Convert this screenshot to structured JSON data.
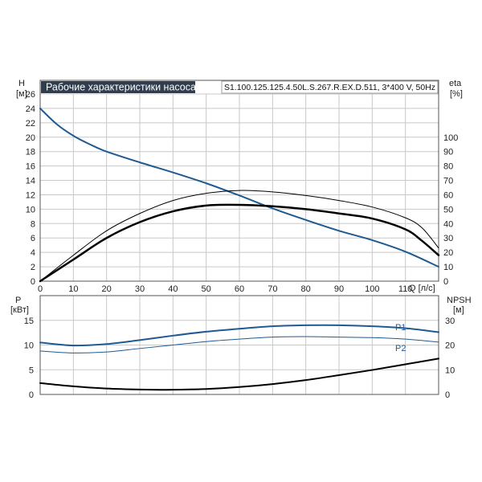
{
  "header": {
    "title": "Рабочие характеристики насоса",
    "model": "S1.100.125.125.4.50L.S.267.R.EX.D.511, 3*400 V, 50Hz",
    "title_bg": "#2f3d4f"
  },
  "colors": {
    "blue_curve": "#1f5a93",
    "black_curve": "#000000",
    "grid": "#c8c8c8"
  },
  "chart_data": [
    {
      "type": "line",
      "panel": "top",
      "xlabel": "Q [л/с]",
      "ylabel_left": "H",
      "ylabel_left_unit": "[м]",
      "ylabel_right": "eta",
      "ylabel_right_unit": "[%]",
      "xlim": [
        0,
        120
      ],
      "ylim_left": [
        0,
        26
      ],
      "ylim_right": [
        0,
        130
      ],
      "x_ticks": [
        0,
        10,
        20,
        30,
        40,
        50,
        60,
        70,
        80,
        90,
        100,
        110
      ],
      "x_tick_labels": [
        "0",
        "10",
        "20",
        "30",
        "40",
        "50",
        "60",
        "70",
        "80",
        "90",
        "100",
        "110"
      ],
      "y_ticks_left": [
        0,
        2,
        4,
        6,
        8,
        10,
        12,
        14,
        16,
        18,
        20,
        22,
        24,
        26
      ],
      "y_tick_labels_left": [
        "0",
        "2",
        "4",
        "6",
        "8",
        "10",
        "12",
        "14",
        "16",
        "18",
        "20",
        "22",
        "24",
        "26"
      ],
      "y_ticks_right": [
        0,
        10,
        20,
        30,
        40,
        50,
        60,
        70,
        80,
        90,
        100
      ],
      "y_tick_labels_right": [
        "0",
        "10",
        "20",
        "30",
        "40",
        "50",
        "60",
        "70",
        "80",
        "90",
        "100"
      ],
      "series": [
        {
          "axis": "left",
          "color": "#1f5a93",
          "width": 2,
          "x": [
            0,
            5,
            10,
            15,
            20,
            30,
            40,
            50,
            60,
            70,
            80,
            90,
            100,
            110,
            120
          ],
          "y": [
            24,
            21.8,
            20.2,
            19,
            18,
            16.5,
            15.1,
            13.6,
            11.9,
            10.1,
            8.5,
            7.0,
            5.7,
            4.1,
            2.0
          ]
        },
        {
          "axis": "right",
          "color": "#000000",
          "width": 1,
          "x": [
            0,
            10,
            20,
            30,
            40,
            50,
            60,
            70,
            80,
            90,
            100,
            110,
            115,
            120
          ],
          "y": [
            0,
            18,
            35,
            47,
            56,
            61,
            63,
            62,
            59.5,
            56,
            51.5,
            44,
            37,
            23
          ]
        },
        {
          "axis": "right",
          "color": "#000000",
          "width": 2.5,
          "x": [
            0,
            10,
            20,
            30,
            40,
            50,
            60,
            70,
            80,
            90,
            100,
            110,
            115,
            120
          ],
          "y": [
            0,
            15,
            30,
            41,
            48.5,
            52.5,
            53,
            52,
            50,
            47,
            43.5,
            36,
            28,
            18
          ]
        }
      ]
    },
    {
      "type": "line",
      "panel": "bottom",
      "ylabel_left": "P",
      "ylabel_left_unit": "[кВт]",
      "ylabel_right": "NPSH",
      "ylabel_right_unit": "[м]",
      "xlim": [
        0,
        120
      ],
      "ylim_left": [
        0,
        20
      ],
      "ylim_right": [
        0,
        40
      ],
      "y_ticks_left": [
        0,
        5,
        10,
        15
      ],
      "y_tick_labels_left": [
        "0",
        "5",
        "10",
        "15"
      ],
      "y_ticks_right": [
        0,
        10,
        20,
        30
      ],
      "y_tick_labels_right": [
        "0",
        "10",
        "20",
        "30"
      ],
      "series": [
        {
          "name": "P1",
          "axis": "left",
          "color": "#1f5a93",
          "width": 2,
          "x": [
            0,
            10,
            20,
            30,
            40,
            50,
            60,
            70,
            80,
            90,
            100,
            110,
            120
          ],
          "y": [
            10.5,
            9.9,
            10.2,
            11.0,
            11.9,
            12.7,
            13.3,
            13.8,
            14.0,
            14.0,
            13.8,
            13.4,
            12.6
          ]
        },
        {
          "name": "P2",
          "axis": "left",
          "color": "#1f5a93",
          "width": 1,
          "x": [
            0,
            10,
            20,
            30,
            40,
            50,
            60,
            70,
            80,
            90,
            100,
            110,
            120
          ],
          "y": [
            8.8,
            8.4,
            8.6,
            9.3,
            10.0,
            10.7,
            11.2,
            11.6,
            11.7,
            11.6,
            11.5,
            11.2,
            10.6
          ]
        },
        {
          "axis": "right",
          "color": "#000000",
          "width": 2,
          "x": [
            0,
            10,
            20,
            30,
            40,
            50,
            60,
            70,
            80,
            90,
            100,
            110,
            120
          ],
          "y": [
            4.6,
            3.3,
            2.4,
            2.0,
            1.9,
            2.2,
            3.0,
            4.2,
            5.8,
            7.8,
            9.9,
            12.2,
            14.5
          ]
        }
      ]
    }
  ]
}
